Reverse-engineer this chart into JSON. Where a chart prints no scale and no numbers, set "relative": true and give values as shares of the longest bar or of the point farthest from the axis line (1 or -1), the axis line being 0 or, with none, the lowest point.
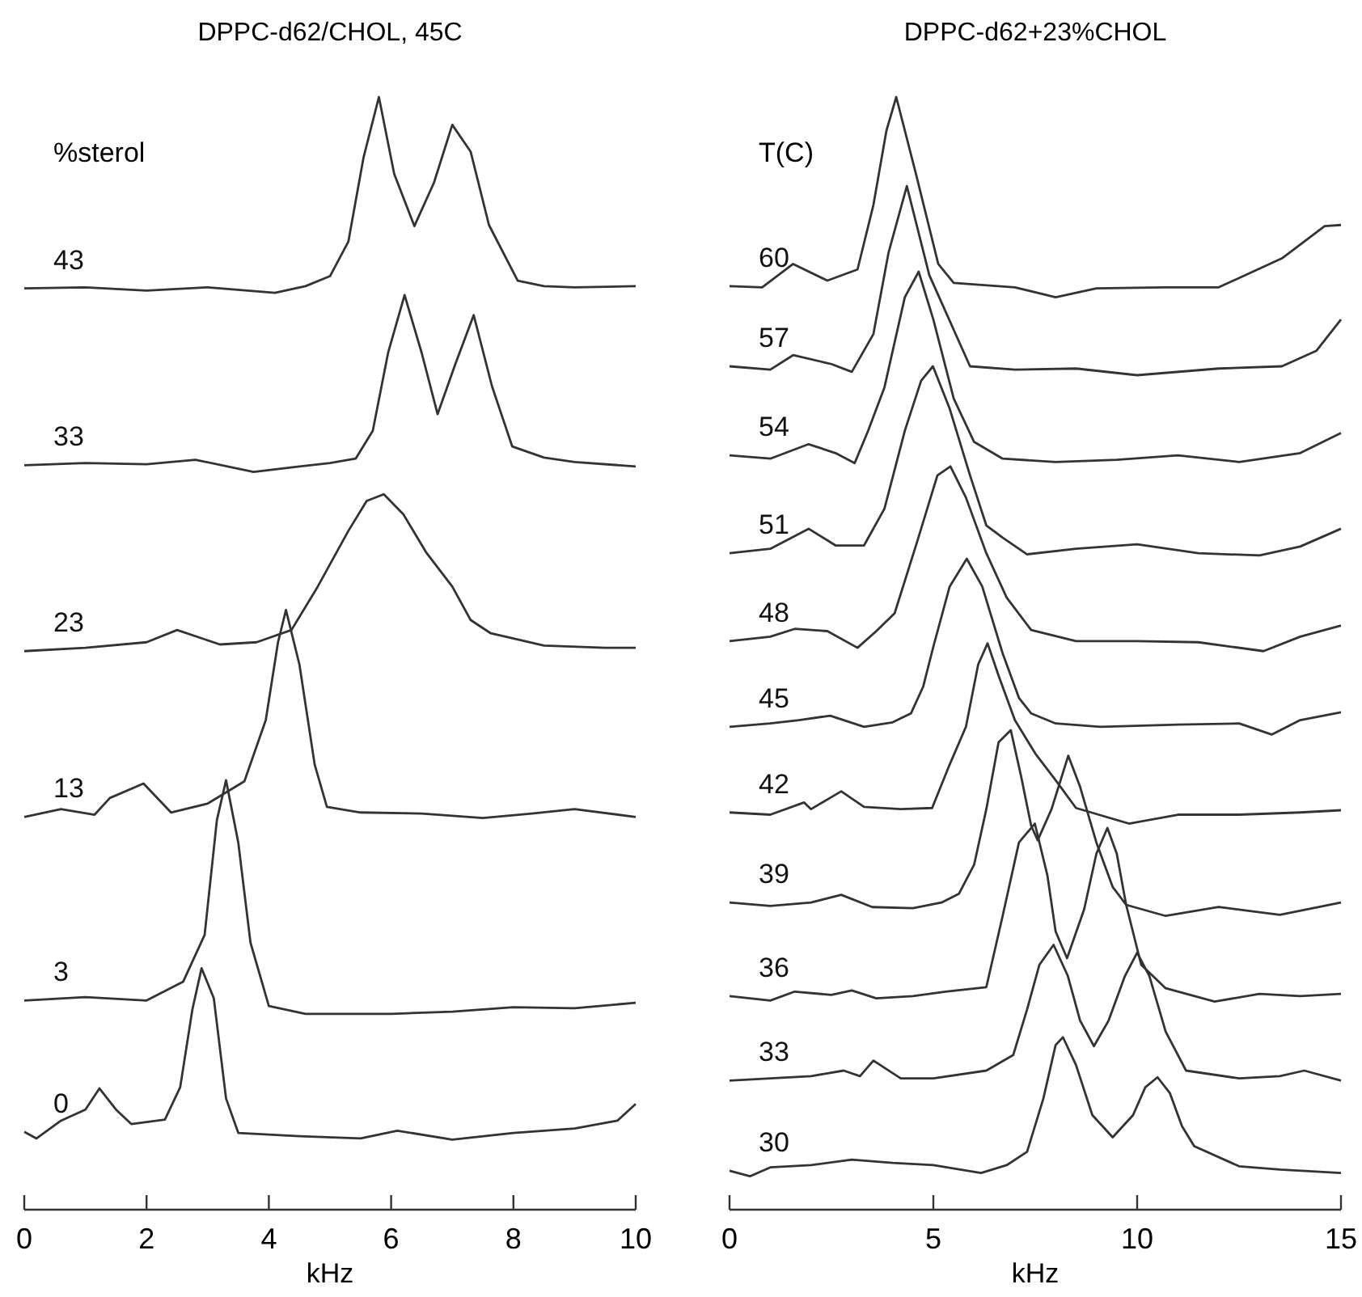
{
  "chart_data": [
    {
      "type": "line",
      "title": "DPPC-d62/CHOL, 45C",
      "xlabel": "kHz",
      "legend_title": "%sterol",
      "relative": true,
      "legend": false,
      "marker": "none",
      "line_style": "solid",
      "grid": false,
      "xlim": [
        0,
        10
      ],
      "xticks": [
        0,
        2,
        4,
        6,
        8,
        10
      ],
      "series": [
        {
          "name": "43",
          "color": "#333333",
          "x": [
            0,
            1,
            2,
            3,
            4.1,
            4.6,
            5.0,
            5.3,
            5.55,
            5.8,
            6.05,
            6.38,
            6.7,
            7.0,
            7.3,
            7.6,
            8.07,
            8.5,
            9,
            10
          ],
          "values": [
            0.828,
            0.829,
            0.826,
            0.829,
            0.824,
            0.83,
            0.839,
            0.87,
            0.946,
            1.0,
            0.931,
            0.884,
            0.923,
            0.975,
            0.951,
            0.885,
            0.835,
            0.83,
            0.829,
            0.83
          ]
        },
        {
          "name": "33",
          "color": "#333333",
          "x": [
            0,
            1,
            2,
            2.8,
            3.75,
            4.5,
            5.0,
            5.42,
            5.7,
            5.95,
            6.22,
            6.5,
            6.76,
            7.05,
            7.35,
            7.65,
            7.98,
            8.5,
            9,
            10
          ],
          "values": [
            0.669,
            0.671,
            0.67,
            0.674,
            0.663,
            0.668,
            0.671,
            0.675,
            0.7,
            0.77,
            0.822,
            0.77,
            0.715,
            0.76,
            0.804,
            0.74,
            0.686,
            0.676,
            0.672,
            0.668
          ]
        },
        {
          "name": "23",
          "color": "#333333",
          "x": [
            0,
            1,
            2,
            2.5,
            3.2,
            3.8,
            4.37,
            4.8,
            5.3,
            5.6,
            5.88,
            6.2,
            6.57,
            7.0,
            7.3,
            7.63,
            8.5,
            9.5,
            10
          ],
          "values": [
            0.502,
            0.505,
            0.51,
            0.521,
            0.508,
            0.51,
            0.521,
            0.56,
            0.61,
            0.637,
            0.643,
            0.625,
            0.591,
            0.56,
            0.53,
            0.518,
            0.507,
            0.505,
            0.505
          ]
        },
        {
          "name": "13",
          "color": "#333333",
          "x": [
            0,
            0.6,
            1.15,
            1.4,
            1.95,
            2.4,
            3.0,
            3.6,
            3.95,
            4.15,
            4.28,
            4.5,
            4.75,
            4.95,
            5.5,
            6.5,
            7.5,
            8.3,
            9.0,
            10
          ],
          "values": [
            0.353,
            0.36,
            0.355,
            0.37,
            0.383,
            0.357,
            0.365,
            0.385,
            0.44,
            0.51,
            0.539,
            0.49,
            0.4,
            0.362,
            0.357,
            0.356,
            0.352,
            0.356,
            0.36,
            0.353
          ]
        },
        {
          "name": "3",
          "color": "#333333",
          "x": [
            0,
            1,
            2,
            2.6,
            2.95,
            3.15,
            3.3,
            3.5,
            3.7,
            4.0,
            4.6,
            6,
            7,
            8,
            9,
            10
          ],
          "values": [
            0.188,
            0.191,
            0.188,
            0.205,
            0.247,
            0.35,
            0.386,
            0.33,
            0.24,
            0.183,
            0.176,
            0.176,
            0.178,
            0.182,
            0.181,
            0.186
          ]
        },
        {
          "name": "0",
          "color": "#333333",
          "x": [
            0,
            0.2,
            0.6,
            1.0,
            1.23,
            1.5,
            1.75,
            2.3,
            2.55,
            2.75,
            2.9,
            3.1,
            3.3,
            3.5,
            4.5,
            5.5,
            6.1,
            7.0,
            8,
            9,
            9.7,
            10
          ],
          "values": [
            0.07,
            0.064,
            0.08,
            0.09,
            0.109,
            0.09,
            0.077,
            0.081,
            0.11,
            0.18,
            0.217,
            0.19,
            0.1,
            0.069,
            0.066,
            0.064,
            0.071,
            0.063,
            0.069,
            0.073,
            0.08,
            0.095
          ]
        }
      ]
    },
    {
      "type": "line",
      "title": "DPPC-d62+23%CHOL",
      "xlabel": "kHz",
      "legend_title": "T(C)",
      "relative": true,
      "legend": false,
      "marker": "none",
      "line_style": "solid",
      "grid": false,
      "xlim": [
        0,
        15
      ],
      "xticks": [
        0,
        5,
        10,
        15
      ],
      "series": [
        {
          "name": "60",
          "color": "#333333",
          "x": [
            0,
            0.8,
            1.56,
            2.4,
            3.14,
            3.53,
            3.85,
            4.09,
            4.6,
            5.12,
            5.5,
            7,
            8.0,
            9,
            10.65,
            12.0,
            13.55,
            14.6,
            15
          ],
          "values": [
            0.83,
            0.829,
            0.85,
            0.835,
            0.845,
            0.903,
            0.97,
            1.0,
            0.927,
            0.85,
            0.833,
            0.829,
            0.82,
            0.828,
            0.829,
            0.829,
            0.855,
            0.884,
            0.885
          ]
        },
        {
          "name": "57",
          "color": "#333333",
          "x": [
            0,
            1,
            1.56,
            2.5,
            3.0,
            3.53,
            3.9,
            4.35,
            4.9,
            5.9,
            7,
            8.5,
            10,
            12,
            13.55,
            14.4,
            15
          ],
          "values": [
            0.758,
            0.755,
            0.768,
            0.76,
            0.753,
            0.787,
            0.86,
            0.92,
            0.84,
            0.758,
            0.755,
            0.756,
            0.75,
            0.756,
            0.758,
            0.772,
            0.8
          ]
        },
        {
          "name": "54",
          "color": "#333333",
          "x": [
            0,
            1,
            1.94,
            2.6,
            3.07,
            3.4,
            3.8,
            4.3,
            4.64,
            5.0,
            5.5,
            6.0,
            6.7,
            8,
            9.5,
            11,
            12.5,
            14,
            15
          ],
          "values": [
            0.678,
            0.675,
            0.688,
            0.68,
            0.671,
            0.7,
            0.739,
            0.82,
            0.843,
            0.8,
            0.729,
            0.69,
            0.675,
            0.672,
            0.674,
            0.678,
            0.672,
            0.68,
            0.698
          ]
        },
        {
          "name": "51",
          "color": "#333333",
          "x": [
            0,
            1,
            1.94,
            2.6,
            3.3,
            3.8,
            4.3,
            4.7,
            4.99,
            5.4,
            5.9,
            6.3,
            6.7,
            7.3,
            8.5,
            10,
            11.5,
            13,
            14,
            15
          ],
          "values": [
            0.59,
            0.594,
            0.612,
            0.597,
            0.597,
            0.63,
            0.7,
            0.745,
            0.758,
            0.72,
            0.66,
            0.615,
            0.604,
            0.589,
            0.594,
            0.598,
            0.59,
            0.588,
            0.596,
            0.612
          ]
        },
        {
          "name": "48",
          "color": "#333333",
          "x": [
            0,
            1,
            1.6,
            2.4,
            3.14,
            3.6,
            4.05,
            4.6,
            5.1,
            5.42,
            5.8,
            6.3,
            6.8,
            7.4,
            8.5,
            10,
            11.5,
            13.1,
            14,
            15
          ],
          "values": [
            0.511,
            0.515,
            0.522,
            0.52,
            0.505,
            0.52,
            0.536,
            0.6,
            0.66,
            0.668,
            0.64,
            0.59,
            0.55,
            0.521,
            0.511,
            0.511,
            0.51,
            0.502,
            0.515,
            0.525
          ]
        },
        {
          "name": "45",
          "color": "#333333",
          "x": [
            0,
            1,
            1.7,
            2.47,
            3.3,
            4.0,
            4.45,
            4.75,
            5.0,
            5.4,
            5.82,
            6.2,
            6.7,
            7.1,
            7.4,
            8,
            9.1,
            11,
            12.5,
            13.3,
            14,
            15
          ],
          "values": [
            0.434,
            0.437,
            0.44,
            0.444,
            0.434,
            0.438,
            0.446,
            0.47,
            0.506,
            0.56,
            0.585,
            0.56,
            0.5,
            0.46,
            0.446,
            0.437,
            0.434,
            0.436,
            0.437,
            0.427,
            0.44,
            0.447
          ]
        },
        {
          "name": "42",
          "color": "#333333",
          "x": [
            0,
            1,
            1.83,
            2.0,
            2.74,
            3.3,
            4.2,
            4.97,
            5.4,
            5.8,
            6.1,
            6.33,
            6.6,
            7.0,
            7.5,
            8.0,
            8.5,
            9.8,
            11,
            12.5,
            14,
            15
          ],
          "values": [
            0.357,
            0.355,
            0.366,
            0.36,
            0.376,
            0.362,
            0.36,
            0.361,
            0.4,
            0.434,
            0.49,
            0.509,
            0.48,
            0.44,
            0.41,
            0.386,
            0.361,
            0.347,
            0.355,
            0.355,
            0.357,
            0.359
          ]
        },
        {
          "name": "39",
          "color": "#333333",
          "x": [
            0,
            1,
            2,
            2.74,
            3.5,
            4.5,
            5.2,
            5.63,
            6.0,
            6.3,
            6.6,
            6.9,
            7.15,
            7.4,
            7.56,
            7.9,
            8.31,
            8.6,
            9.0,
            9.4,
            9.73,
            10.7,
            12,
            13.5,
            15
          ],
          "values": [
            0.276,
            0.273,
            0.276,
            0.283,
            0.272,
            0.271,
            0.276,
            0.284,
            0.31,
            0.36,
            0.42,
            0.431,
            0.39,
            0.345,
            0.332,
            0.36,
            0.408,
            0.38,
            0.33,
            0.29,
            0.274,
            0.264,
            0.272,
            0.265,
            0.276
          ]
        },
        {
          "name": "36",
          "color": "#333333",
          "x": [
            0,
            1,
            1.6,
            2.5,
            3.0,
            3.6,
            4.5,
            5.3,
            6.3,
            6.7,
            7.1,
            7.49,
            7.8,
            8.0,
            8.28,
            8.7,
            9.0,
            9.27,
            9.5,
            9.73,
            10.1,
            10.7,
            11.9,
            13,
            14,
            15
          ],
          "values": [
            0.192,
            0.188,
            0.196,
            0.193,
            0.197,
            0.19,
            0.192,
            0.196,
            0.2,
            0.264,
            0.33,
            0.347,
            0.3,
            0.25,
            0.226,
            0.27,
            0.32,
            0.343,
            0.32,
            0.274,
            0.22,
            0.199,
            0.187,
            0.194,
            0.192,
            0.194
          ]
        },
        {
          "name": "33",
          "color": "#333333",
          "x": [
            0,
            1,
            2,
            2.8,
            3.2,
            3.53,
            4.2,
            5.0,
            6.3,
            6.96,
            7.3,
            7.6,
            7.95,
            8.3,
            8.6,
            8.94,
            9.3,
            9.7,
            10.0,
            10.3,
            10.7,
            11.2,
            12.5,
            13.5,
            14.1,
            15
          ],
          "values": [
            0.116,
            0.118,
            0.12,
            0.125,
            0.12,
            0.134,
            0.118,
            0.118,
            0.125,
            0.139,
            0.18,
            0.22,
            0.238,
            0.21,
            0.17,
            0.147,
            0.17,
            0.21,
            0.231,
            0.21,
            0.16,
            0.125,
            0.118,
            0.12,
            0.125,
            0.116
          ]
        },
        {
          "name": "30",
          "color": "#333333",
          "x": [
            0,
            0.5,
            1,
            2,
            3,
            4,
            5,
            6.17,
            6.8,
            7.3,
            7.7,
            8.0,
            8.18,
            8.5,
            8.9,
            9.4,
            9.9,
            10.2,
            10.5,
            10.8,
            11.1,
            11.4,
            12.5,
            13.5,
            15
          ],
          "values": [
            0.035,
            0.03,
            0.038,
            0.04,
            0.045,
            0.042,
            0.04,
            0.033,
            0.04,
            0.052,
            0.1,
            0.148,
            0.155,
            0.13,
            0.085,
            0.065,
            0.085,
            0.11,
            0.119,
            0.105,
            0.075,
            0.057,
            0.039,
            0.036,
            0.033
          ]
        }
      ]
    }
  ]
}
